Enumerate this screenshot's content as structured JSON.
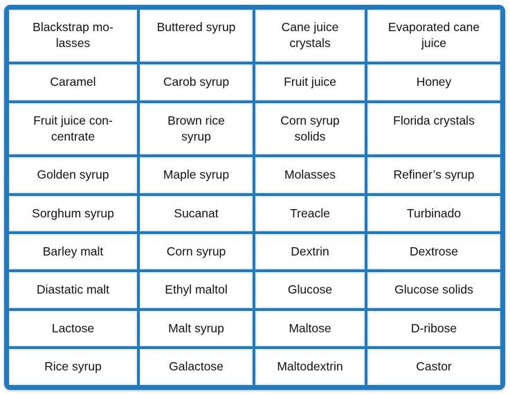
{
  "table": {
    "rows": [
      [
        "Blackstrap mo-\nlasses",
        "Buttered syrup",
        "Cane juice\ncrystals",
        "Evaporated cane\njuice"
      ],
      [
        "Caramel",
        "Carob syrup",
        "Fruit juice",
        "Honey"
      ],
      [
        "Fruit juice con-\ncentrate",
        "Brown rice\nsyrup",
        "Corn syrup\nsolids",
        "Florida crystals"
      ],
      [
        "Golden syrup",
        "Maple syrup",
        "Molasses",
        "Refiner’s syrup"
      ],
      [
        "Sorghum syrup",
        "Sucanat",
        "Treacle",
        "Turbinado"
      ],
      [
        "Barley malt",
        "Corn syrup",
        "Dextrin",
        "Dextrose"
      ],
      [
        "Diastatic malt",
        "Ethyl maltol",
        "Glucose",
        "Glucose solids"
      ],
      [
        "Lactose",
        "Malt syrup",
        "Maltose",
        "D-ribose"
      ],
      [
        "Rice syrup",
        "Galactose",
        "Maltodextrin",
        "Castor"
      ]
    ]
  }
}
